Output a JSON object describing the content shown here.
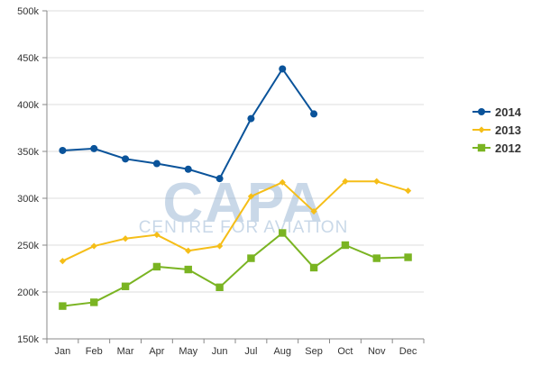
{
  "chart_data": {
    "type": "line",
    "categories": [
      "Jan",
      "Feb",
      "Mar",
      "Apr",
      "May",
      "Jun",
      "Jul",
      "Aug",
      "Sep",
      "Oct",
      "Nov",
      "Dec"
    ],
    "ylim": [
      150000,
      500000
    ],
    "yticks": [
      {
        "value": 150000,
        "label": "150k"
      },
      {
        "value": 200000,
        "label": "200k"
      },
      {
        "value": 250000,
        "label": "250k"
      },
      {
        "value": 300000,
        "label": "300k"
      },
      {
        "value": 350000,
        "label": "350k"
      },
      {
        "value": 400000,
        "label": "400k"
      },
      {
        "value": 450000,
        "label": "450k"
      },
      {
        "value": 500000,
        "label": "500k"
      }
    ],
    "grid": true,
    "legend_position": "right",
    "series": [
      {
        "name": "2014",
        "color": "#0a539a",
        "marker": "circle",
        "values": [
          351000,
          353000,
          342000,
          337000,
          331000,
          321000,
          385000,
          438000,
          390000,
          null,
          null,
          null
        ]
      },
      {
        "name": "2013",
        "color": "#f5be18",
        "marker": "diamond",
        "values": [
          233000,
          249000,
          257000,
          261000,
          244000,
          249000,
          302000,
          317000,
          286000,
          318000,
          318000,
          308000
        ]
      },
      {
        "name": "2012",
        "color": "#7ab422",
        "marker": "square",
        "values": [
          185000,
          189000,
          206000,
          227000,
          224000,
          205000,
          236000,
          263000,
          226000,
          250000,
          236000,
          237000
        ]
      }
    ]
  },
  "watermark": {
    "logo_text": "CAPA",
    "tagline": "CENTRE FOR AVIATION",
    "color": "#9db9d6"
  }
}
